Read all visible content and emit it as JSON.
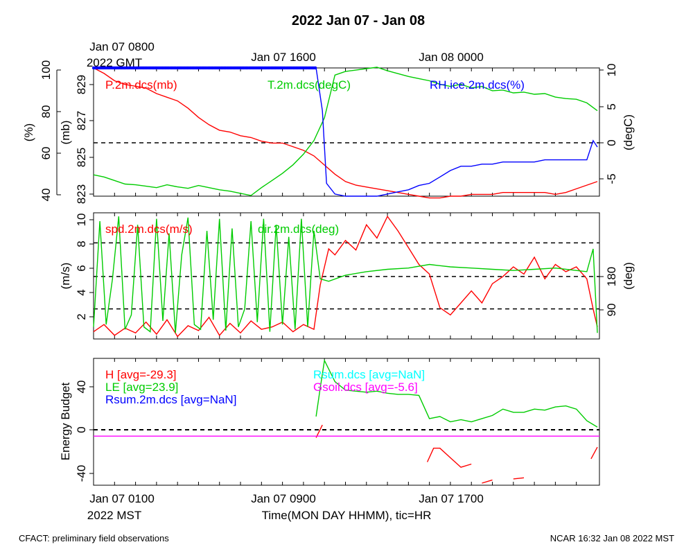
{
  "title": "2022 Jan 07 - Jan 08",
  "top_axis": {
    "labels": [
      "Jan 07 0800",
      "Jan 07 1600",
      "Jan 08 0000"
    ],
    "gmt": "2022 GMT"
  },
  "bottom_axis": {
    "labels": [
      "Jan 07 0100",
      "Jan 07 0900",
      "Jan 07 1700"
    ],
    "mst": "2022 MST",
    "xlabel": "Time(MON DAY HHMM), tic=HR"
  },
  "footer": {
    "left": "CFACT: preliminary field observations",
    "right": "NCAR 16:32 Jan 08 2022 MST"
  },
  "colors": {
    "red": "#ff0000",
    "green": "#00cc00",
    "blue": "#0000ff",
    "cyan": "#00ffff",
    "magenta": "#ff00ff",
    "black": "#000000"
  },
  "chart_data": [
    {
      "type": "line",
      "panel": "top",
      "x_unit": "hours since Jan 07 0000 MST",
      "xlim": [
        0,
        24.1
      ],
      "axes": {
        "rh": {
          "label": "(%)",
          "ticks": [
            "40",
            "60",
            "80",
            "100"
          ],
          "ylim": [
            40,
            100
          ]
        },
        "pressure": {
          "label": "(mb)",
          "ticks": [
            "823",
            "825",
            "827",
            "829"
          ],
          "ylim": [
            823,
            830
          ]
        },
        "temp": {
          "label": "(degC)",
          "ticks": [
            "-5",
            "0",
            "5",
            "10"
          ],
          "ylim": [
            -7.5,
            10.5
          ]
        }
      },
      "legend": [
        "P.2m.dcs(mb)",
        "T.2m.dcs(degC)",
        "RH.ice.2m.dcs(%)"
      ],
      "series": [
        {
          "name": "P.2m.dcs(mb)",
          "axis": "pressure",
          "color": "#ff0000",
          "x": [
            0,
            0.5,
            1,
            1.5,
            2,
            2.5,
            3,
            3.5,
            4,
            4.5,
            5,
            5.5,
            6,
            6.5,
            7,
            7.5,
            8,
            8.5,
            9,
            9.5,
            10,
            10.5,
            11,
            11.5,
            12,
            12.5,
            13,
            13.5,
            14,
            14.5,
            15,
            15.5,
            16,
            16.5,
            17,
            17.5,
            18,
            18.5,
            19,
            19.5,
            20,
            20.5,
            21,
            21.5,
            22,
            22.5,
            23,
            23.5,
            24
          ],
          "y": [
            830,
            829.7,
            829.3,
            829.1,
            829.0,
            828.9,
            828.6,
            828.4,
            828.2,
            827.8,
            827.3,
            826.9,
            826.6,
            826.5,
            826.3,
            826.2,
            826.0,
            825.9,
            825.9,
            825.7,
            825.5,
            825.2,
            824.7,
            824.2,
            823.8,
            823.6,
            823.5,
            823.4,
            823.3,
            823.2,
            823.1,
            823.0,
            822.9,
            822.9,
            823.0,
            823.0,
            823.1,
            823.1,
            823.1,
            823.2,
            823.2,
            823.2,
            823.2,
            823.2,
            823.1,
            823.2,
            823.4,
            823.6,
            823.8
          ]
        },
        {
          "name": "T.2m.dcs(degC)",
          "axis": "temp",
          "color": "#00cc00",
          "x": [
            0,
            0.5,
            1,
            1.5,
            2,
            2.5,
            3,
            3.5,
            4,
            4.5,
            5,
            5.5,
            6,
            6.5,
            7,
            7.5,
            8,
            8.5,
            9,
            9.5,
            10,
            10.5,
            11,
            11.5,
            12,
            12.5,
            13,
            13.5,
            14,
            14.5,
            15,
            15.5,
            16,
            16.5,
            17,
            17.5,
            18,
            18.5,
            19,
            19.5,
            20,
            20.5,
            21,
            21.5,
            22,
            22.5,
            23,
            23.5,
            24
          ],
          "y": [
            -4.5,
            -4.8,
            -5.3,
            -5.8,
            -5.9,
            -6.1,
            -6.3,
            -5.9,
            -6.2,
            -6.4,
            -6.0,
            -6.3,
            -6.6,
            -6.8,
            -7.1,
            -7.4,
            -6.3,
            -5.3,
            -4.3,
            -3.1,
            -1.6,
            0.3,
            3.5,
            9.5,
            10.0,
            10.2,
            10.4,
            10.6,
            10.1,
            9.7,
            9.3,
            9.0,
            8.7,
            8.2,
            7.9,
            8.2,
            7.7,
            7.9,
            7.3,
            7.4,
            7.0,
            7.1,
            6.8,
            6.9,
            6.4,
            6.2,
            6.1,
            5.6,
            4.5
          ]
        },
        {
          "name": "RH.ice.2m.dcs(%)",
          "axis": "rh",
          "color": "#0000ff",
          "x": [
            0,
            1,
            2,
            3,
            4,
            5,
            6,
            7,
            8,
            9,
            10,
            10.6,
            10.9,
            11.1,
            11.5,
            12,
            12.5,
            13,
            13.5,
            14,
            14.5,
            15,
            15.5,
            16,
            16.5,
            17,
            17.5,
            18,
            18.5,
            19,
            19.5,
            20,
            20.5,
            21,
            21.5,
            22,
            22.5,
            23,
            23.5,
            23.8,
            24
          ],
          "y": [
            100,
            100,
            100,
            100,
            100,
            100,
            100,
            100,
            100,
            100,
            100,
            100,
            80,
            46,
            41,
            40,
            40,
            40,
            40,
            41,
            42,
            43,
            45,
            46,
            49,
            52,
            54,
            54,
            55,
            55,
            56,
            56,
            56,
            56,
            57,
            57,
            57,
            57,
            57,
            66,
            63
          ],
          "markers_until": 10.6
        }
      ]
    },
    {
      "type": "line",
      "panel": "middle",
      "x_unit": "hours since Jan 07 0000 MST",
      "xlim": [
        0,
        24.1
      ],
      "axes": {
        "speed": {
          "label": "(m/s)",
          "ticks": [
            "2",
            "4",
            "6",
            "8",
            "10"
          ],
          "ylim": [
            0,
            10.5
          ]
        },
        "dir": {
          "label": "(deg)",
          "ticks": [
            "90",
            "180"
          ]
        }
      },
      "legend": [
        "spd.2m.dcs(m/s)",
        "dir.2m.dcs(deg)"
      ],
      "series": [
        {
          "name": "spd.2m.dcs(m/s)",
          "axis": "speed",
          "color": "#ff0000",
          "x": [
            0,
            0.5,
            1,
            1.5,
            2,
            2.5,
            3,
            3.5,
            4,
            4.5,
            5,
            5.5,
            6,
            6.5,
            7,
            7.5,
            8,
            8.5,
            9,
            9.5,
            10,
            10.5,
            10.8,
            11.2,
            11.5,
            12,
            12.5,
            13,
            13.5,
            14,
            14.5,
            15,
            15.5,
            16,
            16.5,
            17,
            17.5,
            18,
            18.5,
            19,
            19.5,
            20,
            20.5,
            21,
            21.5,
            22,
            22.5,
            23,
            23.5,
            23.8,
            24
          ],
          "y": [
            0.6,
            1.2,
            0.3,
            0.9,
            0.5,
            1.4,
            0.4,
            1.6,
            0.2,
            1.1,
            0.7,
            1.8,
            0.3,
            1.3,
            0.5,
            1.5,
            0.8,
            1.0,
            1.4,
            0.6,
            1.2,
            0.8,
            4.5,
            7.5,
            7.0,
            8.2,
            7.4,
            9.5,
            8.4,
            10.2,
            9.0,
            7.6,
            6.2,
            5.4,
            2.6,
            2.0,
            3.0,
            4.0,
            3.0,
            4.6,
            5.2,
            6.0,
            5.4,
            6.8,
            5.0,
            6.2,
            5.6,
            6.0,
            5.0,
            2.5,
            1.0
          ]
        },
        {
          "name": "dir.2m.dcs(deg)",
          "axis": "speed",
          "color": "#00cc00",
          "x": [
            0,
            0.3,
            0.6,
            0.9,
            1.2,
            1.5,
            1.8,
            2.1,
            2.4,
            2.7,
            3.0,
            3.3,
            3.6,
            3.9,
            4.2,
            4.5,
            4.8,
            5.1,
            5.4,
            5.7,
            6.0,
            6.3,
            6.6,
            6.9,
            7.2,
            7.5,
            7.8,
            8.1,
            8.4,
            8.7,
            9.0,
            9.3,
            9.6,
            9.9,
            10.2,
            10.5,
            10.8,
            11.2,
            12,
            13,
            14,
            15,
            16,
            17,
            18,
            19,
            20,
            21,
            22,
            23,
            23.5,
            23.8,
            24
          ],
          "y": [
            1.0,
            9.8,
            1.2,
            5.0,
            10.2,
            0.8,
            2.0,
            9.5,
            1.0,
            0.6,
            10.0,
            1.5,
            8.8,
            0.5,
            7.0,
            10.1,
            1.2,
            0.8,
            9.0,
            1.6,
            10.0,
            0.7,
            9.2,
            1.0,
            2.5,
            9.8,
            1.4,
            10.0,
            0.6,
            9.5,
            1.2,
            8.5,
            0.8,
            10.0,
            1.0,
            9.0,
            5.0,
            4.8,
            5.3,
            5.6,
            5.8,
            5.9,
            6.2,
            6.0,
            5.9,
            5.8,
            5.7,
            5.8,
            5.9,
            5.7,
            5.6,
            7.5,
            0.5
          ]
        }
      ],
      "reference_lines": [
        2.5,
        5.2,
        8.0
      ]
    },
    {
      "type": "line",
      "panel": "bottom",
      "x_unit": "hours since Jan 07 0000 MST",
      "xlim": [
        0,
        24.1
      ],
      "ylabel": "Energy Budget",
      "ticks": [
        "-40",
        "0",
        "40"
      ],
      "ylim": [
        -52,
        68
      ],
      "legend": [
        "H [avg=-29.3]",
        "LE [avg=23.9]",
        "Rsum.2m.dcs [avg=NaN]",
        "Rsum.dcs [avg=NaN]",
        "Gsoil.dcs [avg=-5.6]"
      ],
      "series": [
        {
          "name": "H [avg=-29.3]",
          "color": "#ff0000",
          "segments": [
            {
              "x": [
                10.6,
                10.9
              ],
              "y": [
                -7,
                5
              ]
            },
            {
              "x": [
                15.9,
                16.2,
                16.5,
                17.0,
                17.5,
                18.0
              ],
              "y": [
                -30,
                -17,
                -17,
                -26,
                -35,
                -32
              ]
            },
            {
              "x": [
                18.5,
                19.0
              ],
              "y": [
                -50,
                -47
              ]
            },
            {
              "x": [
                20.0,
                20.5
              ],
              "y": [
                -46,
                -45
              ]
            },
            {
              "x": [
                23.7,
                24.0
              ],
              "y": [
                -27,
                -16
              ]
            }
          ]
        },
        {
          "name": "LE [avg=23.9]",
          "color": "#00cc00",
          "x": [
            10.6,
            10.8,
            11.0,
            11.5,
            12,
            12.5,
            13,
            13.5,
            14,
            14.5,
            15,
            15.5,
            16,
            16.5,
            17,
            17.5,
            18,
            18.5,
            19,
            19.5,
            20,
            20.5,
            21,
            21.5,
            22,
            22.5,
            23,
            23.5,
            24
          ],
          "y": [
            13,
            40,
            66,
            46,
            38,
            37,
            36,
            37,
            35,
            34,
            34,
            33,
            11,
            13,
            8,
            10,
            8,
            11,
            14,
            20,
            17,
            17,
            20,
            19,
            22,
            23,
            20,
            9,
            3
          ]
        },
        {
          "name": "Gsoil.dcs [avg=-5.6]",
          "color": "#ff00ff",
          "x": [
            0,
            24.1
          ],
          "y": [
            -5.6,
            -5.6
          ]
        }
      ],
      "reference_lines": [
        0
      ]
    }
  ]
}
